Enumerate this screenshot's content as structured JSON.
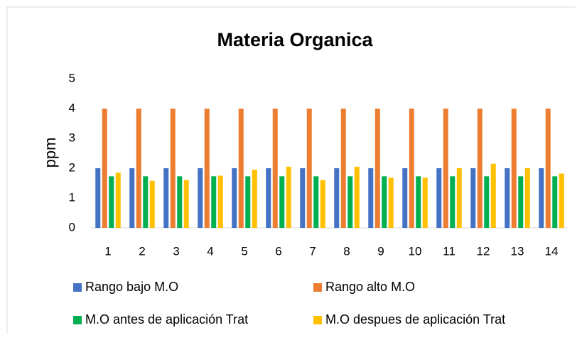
{
  "chart_data": {
    "type": "bar",
    "title": "Materia Organica",
    "y_label": "ppm",
    "categories": [
      "1",
      "2",
      "3",
      "4",
      "5",
      "6",
      "7",
      "8",
      "9",
      "10",
      "11",
      "12",
      "13",
      "14"
    ],
    "series": [
      {
        "name": "Rango bajo  M.O",
        "color": "#4472c4",
        "values": [
          2,
          2,
          2,
          2,
          2,
          2,
          2,
          2,
          2,
          2,
          2,
          2,
          2,
          2
        ]
      },
      {
        "name": "Rango alto M.O",
        "color": "#ed7d31",
        "values": [
          4,
          4,
          4,
          4,
          4,
          4,
          4,
          4,
          4,
          4,
          4,
          4,
          4,
          4
        ]
      },
      {
        "name": "M.O antes de aplicación Trat",
        "color": "#00b050",
        "values": [
          1.73,
          1.73,
          1.73,
          1.73,
          1.73,
          1.73,
          1.73,
          1.73,
          1.73,
          1.73,
          1.73,
          1.73,
          1.73,
          1.73
        ]
      },
      {
        "name": "M.O despues de aplicación Trat",
        "color": "#ffc000",
        "values": [
          1.85,
          1.58,
          1.6,
          1.75,
          1.95,
          2.05,
          1.6,
          2.05,
          1.68,
          1.68,
          2.0,
          2.15,
          2.0,
          1.82
        ]
      }
    ],
    "ylim": [
      0,
      5
    ],
    "yticks": [
      0,
      1,
      2,
      3,
      4,
      5
    ],
    "grid": false,
    "legend": "bottom"
  }
}
